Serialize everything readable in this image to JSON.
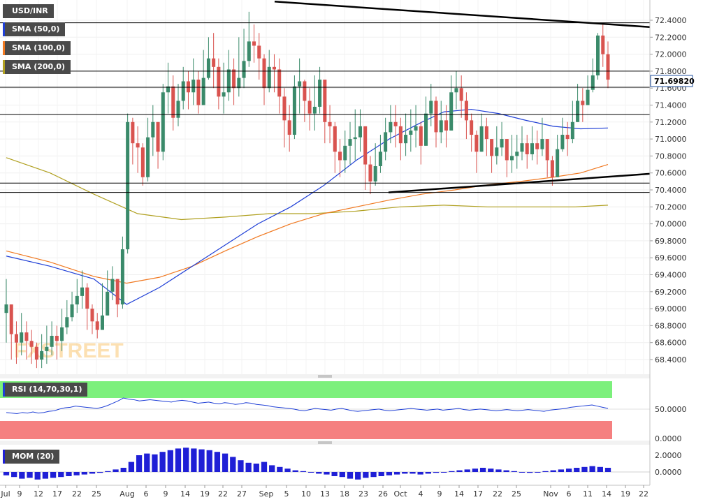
{
  "symbol": "USD/INR",
  "watermark": "FXSTREET",
  "current_price": "71.69820",
  "indicators": {
    "sma50": {
      "label": "SMA (50,0)",
      "color": "#1f3fd6"
    },
    "sma100": {
      "label": "SMA (100,0)",
      "color": "#f07820"
    },
    "sma200": {
      "label": "SMA (200,0)",
      "color": "#b0a020"
    },
    "rsi": {
      "label": "RSI (14,70,30,1)",
      "level_label": "50.0000",
      "zero_label": "0.0000",
      "color": "#1f3fd6"
    },
    "mom": {
      "label": "MOM (20)",
      "labels": [
        "2.0000",
        "0.0000"
      ],
      "color": "#1f1fd6"
    }
  },
  "chart_data": {
    "type": "candlestick",
    "y_ticks": [
      "72.4000",
      "72.2000",
      "72.0000",
      "71.8000",
      "71.6000",
      "71.4000",
      "71.2000",
      "71.0000",
      "70.8000",
      "70.6000",
      "70.4000",
      "70.2000",
      "70.0000",
      "69.8000",
      "69.6000",
      "69.4000",
      "69.2000",
      "69.0000",
      "68.8000",
      "68.6000",
      "68.4000"
    ],
    "ylim": [
      68.3,
      72.55
    ],
    "x_ticks": [
      "Jul",
      "9",
      "12",
      "17",
      "22",
      "25",
      "Aug",
      "6",
      "9",
      "14",
      "19",
      "22",
      "27",
      "Sep",
      "5",
      "10",
      "13",
      "18",
      "23",
      "26",
      "Oct",
      "4",
      "9",
      "14",
      "17",
      "22",
      "25",
      "Nov",
      "6",
      "11",
      "14",
      "19",
      "22"
    ],
    "horizontal_levels": [
      72.37,
      71.8,
      71.61,
      71.29,
      70.48,
      70.37
    ],
    "trendlines": [
      {
        "name": "upper",
        "from": [
          72.62
        ],
        "to": [
          72.32
        ]
      },
      {
        "name": "lower",
        "from": [
          70.37
        ],
        "to": [
          70.59
        ]
      }
    ],
    "closes": [
      69.05,
      68.7,
      68.6,
      68.72,
      68.62,
      68.55,
      68.4,
      68.5,
      68.55,
      68.68,
      68.62,
      68.78,
      68.9,
      69.05,
      69.15,
      69.25,
      69.0,
      68.85,
      68.75,
      68.92,
      69.2,
      69.35,
      69.05,
      69.7,
      71.2,
      70.95,
      70.9,
      70.55,
      71.02,
      71.2,
      70.85,
      71.55,
      71.62,
      71.25,
      71.45,
      71.68,
      71.55,
      71.7,
      71.4,
      71.72,
      71.95,
      71.85,
      71.5,
      71.55,
      71.82,
      71.6,
      71.72,
      71.92,
      72.15,
      72.1,
      71.95,
      71.6,
      71.85,
      71.82,
      71.5,
      71.22,
      71.05,
      71.62,
      71.68,
      71.45,
      71.3,
      71.38,
      71.7,
      71.2,
      71.15,
      70.85,
      70.75,
      70.92,
      71.0,
      71.02,
      71.15,
      70.7,
      70.5,
      70.68,
      70.85,
      71.08,
      71.2,
      71.15,
      70.95,
      71.05,
      71.1,
      71.15,
      70.92,
      71.3,
      71.45,
      71.08,
      71.22,
      71.1,
      71.55,
      71.6,
      71.45,
      71.22,
      71.05,
      70.85,
      71.15,
      71.0,
      70.8,
      70.9,
      71.0,
      70.75,
      70.8,
      70.85,
      70.95,
      70.82,
      70.95,
      70.88,
      71.0,
      70.75,
      70.55,
      70.88,
      71.05,
      71.0,
      71.2,
      71.45,
      71.4,
      71.58,
      71.75,
      72.22,
      72.0,
      71.7
    ],
    "ranges": [
      [
        68.6,
        69.35
      ],
      [
        68.4,
        68.95
      ],
      [
        68.35,
        68.85
      ],
      [
        68.45,
        68.95
      ],
      [
        68.4,
        68.85
      ],
      [
        68.35,
        68.75
      ],
      [
        68.3,
        68.6
      ],
      [
        68.3,
        68.7
      ],
      [
        68.35,
        68.8
      ],
      [
        68.45,
        68.85
      ],
      [
        68.4,
        68.8
      ],
      [
        68.5,
        69.0
      ],
      [
        68.7,
        69.1
      ],
      [
        68.85,
        69.2
      ],
      [
        68.95,
        69.35
      ],
      [
        69.0,
        69.45
      ],
      [
        68.75,
        69.3
      ],
      [
        68.7,
        69.05
      ],
      [
        68.65,
        68.95
      ],
      [
        68.75,
        69.3
      ],
      [
        68.95,
        69.45
      ],
      [
        69.1,
        69.5
      ],
      [
        68.9,
        69.35
      ],
      [
        69.0,
        69.85
      ],
      [
        69.65,
        71.3
      ],
      [
        70.7,
        71.25
      ],
      [
        70.6,
        71.15
      ],
      [
        70.45,
        70.95
      ],
      [
        70.5,
        71.25
      ],
      [
        70.8,
        71.4
      ],
      [
        70.65,
        71.2
      ],
      [
        70.75,
        71.65
      ],
      [
        71.3,
        71.9
      ],
      [
        71.1,
        71.75
      ],
      [
        71.15,
        71.65
      ],
      [
        71.35,
        71.85
      ],
      [
        71.35,
        71.8
      ],
      [
        71.4,
        71.95
      ],
      [
        71.3,
        71.8
      ],
      [
        71.4,
        72.05
      ],
      [
        71.7,
        72.2
      ],
      [
        71.6,
        72.25
      ],
      [
        71.35,
        71.95
      ],
      [
        71.3,
        71.9
      ],
      [
        71.45,
        72.05
      ],
      [
        71.4,
        71.95
      ],
      [
        71.5,
        72.2
      ],
      [
        71.6,
        72.3
      ],
      [
        71.85,
        72.5
      ],
      [
        71.9,
        72.35
      ],
      [
        71.7,
        72.25
      ],
      [
        71.4,
        72.0
      ],
      [
        71.55,
        72.05
      ],
      [
        71.55,
        72.0
      ],
      [
        71.3,
        71.95
      ],
      [
        70.9,
        71.6
      ],
      [
        70.85,
        71.4
      ],
      [
        71.0,
        71.75
      ],
      [
        71.3,
        71.95
      ],
      [
        71.2,
        71.7
      ],
      [
        71.1,
        71.6
      ],
      [
        71.1,
        71.75
      ],
      [
        71.3,
        71.85
      ],
      [
        70.95,
        71.6
      ],
      [
        70.95,
        71.4
      ],
      [
        70.6,
        71.2
      ],
      [
        70.55,
        71.0
      ],
      [
        70.6,
        71.1
      ],
      [
        70.7,
        71.2
      ],
      [
        70.75,
        71.35
      ],
      [
        70.85,
        71.35
      ],
      [
        70.4,
        71.05
      ],
      [
        70.35,
        70.8
      ],
      [
        70.45,
        70.95
      ],
      [
        70.6,
        71.05
      ],
      [
        70.75,
        71.25
      ],
      [
        70.95,
        71.4
      ],
      [
        70.9,
        71.4
      ],
      [
        70.75,
        71.25
      ],
      [
        70.8,
        71.3
      ],
      [
        70.85,
        71.35
      ],
      [
        70.9,
        71.4
      ],
      [
        70.7,
        71.2
      ],
      [
        70.95,
        71.5
      ],
      [
        71.15,
        71.65
      ],
      [
        70.9,
        71.5
      ],
      [
        70.95,
        71.45
      ],
      [
        70.9,
        71.4
      ],
      [
        71.2,
        71.75
      ],
      [
        71.35,
        71.8
      ],
      [
        71.25,
        71.75
      ],
      [
        71.0,
        71.55
      ],
      [
        70.85,
        71.3
      ],
      [
        70.6,
        71.1
      ],
      [
        70.85,
        71.3
      ],
      [
        70.8,
        71.25
      ],
      [
        70.6,
        71.0
      ],
      [
        70.7,
        71.15
      ],
      [
        70.8,
        71.2
      ],
      [
        70.55,
        71.0
      ],
      [
        70.6,
        71.05
      ],
      [
        70.65,
        71.05
      ],
      [
        70.75,
        71.15
      ],
      [
        70.65,
        71.05
      ],
      [
        70.75,
        71.15
      ],
      [
        70.7,
        71.1
      ],
      [
        70.8,
        71.25
      ],
      [
        70.55,
        71.0
      ],
      [
        70.45,
        70.8
      ],
      [
        70.65,
        71.05
      ],
      [
        70.85,
        71.25
      ],
      [
        70.8,
        71.2
      ],
      [
        70.95,
        71.45
      ],
      [
        71.2,
        71.65
      ],
      [
        71.2,
        71.6
      ],
      [
        71.4,
        71.75
      ],
      [
        71.55,
        71.95
      ],
      [
        71.7,
        72.25
      ],
      [
        71.85,
        72.35
      ],
      [
        71.6,
        72.15
      ]
    ],
    "sma50": [
      [
        0,
        69.62
      ],
      [
        8,
        69.5
      ],
      [
        16,
        69.35
      ],
      [
        22,
        69.05
      ],
      [
        28,
        69.25
      ],
      [
        34,
        69.5
      ],
      [
        40,
        69.75
      ],
      [
        46,
        70.0
      ],
      [
        52,
        70.2
      ],
      [
        58,
        70.45
      ],
      [
        64,
        70.75
      ],
      [
        70,
        71.0
      ],
      [
        76,
        71.2
      ],
      [
        80,
        71.32
      ],
      [
        85,
        71.35
      ],
      [
        90,
        71.3
      ],
      [
        95,
        71.22
      ],
      [
        100,
        71.15
      ],
      [
        105,
        71.12
      ],
      [
        110,
        71.13
      ]
    ],
    "sma100": [
      [
        0,
        69.68
      ],
      [
        8,
        69.55
      ],
      [
        16,
        69.38
      ],
      [
        22,
        69.3
      ],
      [
        28,
        69.37
      ],
      [
        34,
        69.5
      ],
      [
        40,
        69.68
      ],
      [
        46,
        69.85
      ],
      [
        52,
        70.0
      ],
      [
        58,
        70.12
      ],
      [
        64,
        70.2
      ],
      [
        70,
        70.28
      ],
      [
        76,
        70.35
      ],
      [
        82,
        70.4
      ],
      [
        88,
        70.46
      ],
      [
        94,
        70.5
      ],
      [
        100,
        70.55
      ],
      [
        105,
        70.6
      ],
      [
        110,
        70.7
      ]
    ],
    "sma200": [
      [
        0,
        70.78
      ],
      [
        8,
        70.6
      ],
      [
        16,
        70.35
      ],
      [
        24,
        70.12
      ],
      [
        32,
        70.05
      ],
      [
        40,
        70.08
      ],
      [
        48,
        70.12
      ],
      [
        56,
        70.12
      ],
      [
        64,
        70.15
      ],
      [
        72,
        70.2
      ],
      [
        80,
        70.22
      ],
      [
        88,
        70.2
      ],
      [
        96,
        70.2
      ],
      [
        104,
        70.2
      ],
      [
        110,
        70.22
      ]
    ],
    "rsi_values": [
      46,
      45,
      44,
      46,
      45,
      47,
      45,
      46,
      48,
      49,
      52,
      54,
      55,
      57,
      56,
      55,
      54,
      53,
      55,
      58,
      62,
      66,
      71,
      69,
      68,
      66,
      67,
      68,
      67,
      66,
      65,
      64,
      66,
      67,
      66,
      64,
      62,
      63,
      64,
      62,
      61,
      63,
      62,
      60,
      61,
      63,
      62,
      60,
      59,
      58,
      56,
      55,
      54,
      53,
      52,
      50,
      49,
      51,
      53,
      52,
      51,
      50,
      52,
      53,
      51,
      49,
      48,
      49,
      50,
      51,
      52,
      50,
      49,
      50,
      51,
      52,
      53,
      52,
      51,
      50,
      51,
      52,
      50,
      51,
      52,
      53,
      51,
      50,
      51,
      52,
      51,
      50,
      49,
      50,
      51,
      50,
      49,
      50,
      51,
      50,
      49,
      48,
      50,
      51,
      52,
      53,
      55,
      56,
      57,
      58,
      59,
      57,
      55,
      53
    ],
    "mom_values": [
      -0.4,
      -0.6,
      -0.8,
      -0.7,
      -0.9,
      -0.8,
      -0.7,
      -0.6,
      -0.5,
      -0.4,
      -0.3,
      -0.2,
      -0.1,
      0.1,
      0.3,
      0.5,
      1.2,
      2.0,
      2.2,
      2.1,
      2.4,
      2.6,
      2.8,
      2.9,
      2.8,
      2.7,
      2.6,
      2.4,
      2.2,
      1.8,
      1.4,
      1.1,
      1.0,
      1.2,
      0.8,
      0.6,
      0.4,
      0.2,
      0.1,
      0.0,
      -0.2,
      -0.3,
      -0.5,
      -0.6,
      -0.8,
      -0.9,
      -0.7,
      -0.6,
      -0.5,
      -0.4,
      -0.3,
      -0.2,
      -0.2,
      -0.3,
      -0.2,
      -0.1,
      0.0,
      0.1,
      0.2,
      0.3,
      0.4,
      0.5,
      0.4,
      0.3,
      0.2,
      0.1,
      0.0,
      -0.1,
      0.0,
      0.1,
      0.2,
      0.3,
      0.4,
      0.5,
      0.6,
      0.7,
      0.6,
      0.5
    ]
  }
}
